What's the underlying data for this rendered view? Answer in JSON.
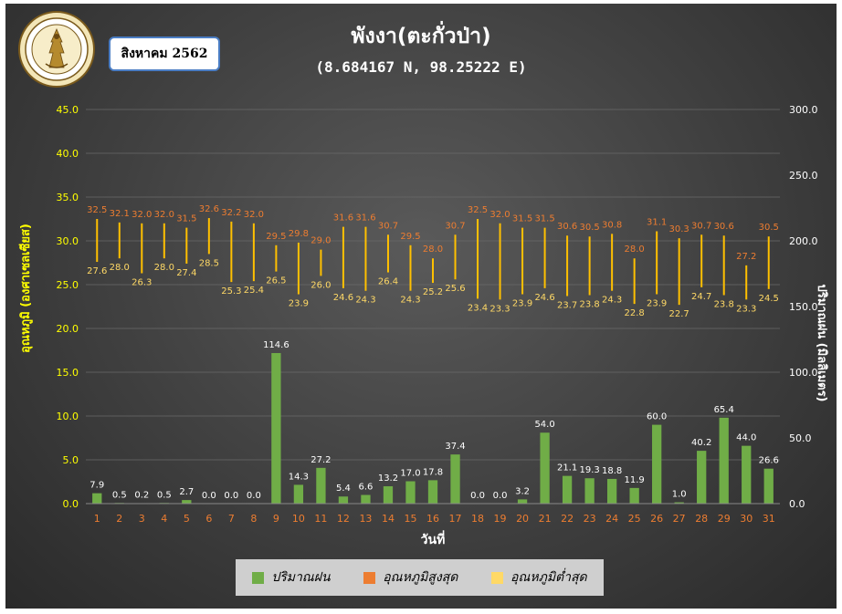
{
  "header": {
    "title": "พังงา(ตะกั่วป่า)",
    "coords": "(8.684167 N, 98.25222 E)",
    "month_label": "สิงหาคม 2562",
    "logo_text": "กรมอุตุนิยมวิทยา METEOROLOGICAL DEPARTMENT"
  },
  "colors": {
    "rain": "#70ad47",
    "tmax": "#ed7d31",
    "tmin": "#ffd966",
    "range_line": "#ffc000",
    "axis_left": "#ffff00",
    "axis_right": "#ffffff",
    "day_labels": "#ed7d31"
  },
  "chart_data": {
    "type": "bar",
    "xlabel": "วันที่",
    "ylabel_left": "อุณหภูมิ (องศาเซลเซียส)",
    "ylabel_right": "ปริมาณฝน (มิลลิเมตร)",
    "ylim_left": [
      0,
      45
    ],
    "yticks_left": [
      "0.0",
      "5.0",
      "10.0",
      "15.0",
      "20.0",
      "25.0",
      "30.0",
      "35.0",
      "40.0",
      "45.0"
    ],
    "ylim_right": [
      0,
      300
    ],
    "yticks_right": [
      "0.0",
      "50.0",
      "100.0",
      "150.0",
      "200.0",
      "250.0",
      "300.0"
    ],
    "categories": [
      "1",
      "2",
      "3",
      "4",
      "5",
      "6",
      "7",
      "8",
      "9",
      "10",
      "11",
      "12",
      "13",
      "14",
      "15",
      "16",
      "17",
      "18",
      "19",
      "20",
      "21",
      "22",
      "23",
      "24",
      "25",
      "26",
      "27",
      "28",
      "29",
      "30",
      "31"
    ],
    "series": [
      {
        "name": "ปริมาณฝน",
        "axis": "right",
        "type": "bar",
        "values": [
          7.9,
          0.5,
          0.2,
          0.5,
          2.7,
          0.0,
          0.0,
          0.0,
          114.6,
          14.3,
          27.2,
          5.4,
          6.6,
          13.2,
          17.0,
          17.8,
          37.4,
          0.0,
          0.0,
          3.2,
          54.0,
          21.1,
          19.3,
          18.8,
          11.9,
          60.0,
          1.0,
          40.2,
          65.4,
          44.0,
          26.6
        ]
      },
      {
        "name": "อุณหภูมิสูงสุด",
        "axis": "left",
        "type": "range-top",
        "values": [
          32.5,
          32.1,
          32.0,
          32.0,
          31.5,
          32.6,
          32.2,
          32.0,
          29.5,
          29.8,
          29.0,
          31.6,
          31.6,
          30.7,
          29.5,
          28.0,
          30.7,
          32.5,
          32.0,
          31.5,
          31.5,
          30.6,
          30.5,
          30.8,
          28.0,
          31.1,
          30.3,
          30.7,
          30.6,
          27.2,
          30.5
        ]
      },
      {
        "name": "อุณหภูมิต่ำสุด",
        "axis": "left",
        "type": "range-bottom",
        "values": [
          27.6,
          28.0,
          26.3,
          28.0,
          27.4,
          28.5,
          25.3,
          25.4,
          26.5,
          23.9,
          26.0,
          24.6,
          24.3,
          26.4,
          24.3,
          25.2,
          25.6,
          23.4,
          23.3,
          23.9,
          24.6,
          23.7,
          23.8,
          24.3,
          22.8,
          23.9,
          22.7,
          24.7,
          23.8,
          23.3,
          24.5
        ]
      }
    ],
    "grid": "horizontal",
    "legend_position": "bottom"
  }
}
